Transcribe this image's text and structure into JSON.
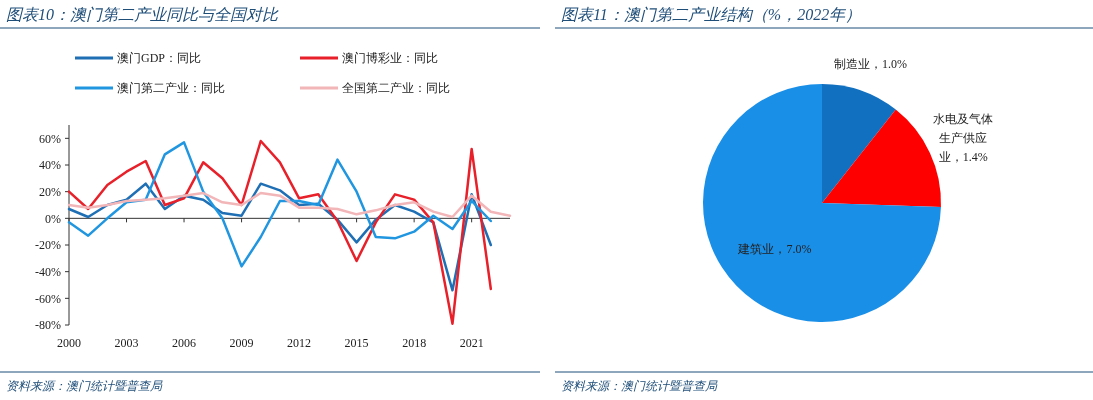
{
  "chart_data": [
    {
      "type": "line",
      "title": "图表10：澳门第二产业同比与全国对比",
      "x": [
        2000,
        2001,
        2002,
        2003,
        2004,
        2005,
        2006,
        2007,
        2008,
        2009,
        2010,
        2011,
        2012,
        2013,
        2014,
        2015,
        2016,
        2017,
        2018,
        2019,
        2020,
        2021,
        2022
      ],
      "series": [
        {
          "name": "澳门GDP：同比",
          "color": "#1f6fb5",
          "values": [
            7,
            1,
            10,
            14,
            26,
            7,
            17,
            14,
            4,
            2,
            26,
            21,
            10,
            11,
            -1,
            -18,
            -1,
            10,
            5,
            -3,
            -54,
            18,
            -20
          ]
        },
        {
          "name": "澳门博彩业：同比",
          "color": "#e8202a",
          "values": [
            20,
            7,
            25,
            35,
            43,
            10,
            15,
            42,
            30,
            10,
            58,
            42,
            15,
            18,
            -2,
            -32,
            -3,
            18,
            14,
            -3,
            -79,
            52,
            -53
          ]
        },
        {
          "name": "澳门第二产业：同比",
          "color": "#2196e0",
          "values": [
            -3,
            -13,
            0,
            12,
            14,
            48,
            57,
            20,
            0,
            -36,
            -14,
            13,
            13,
            10,
            44,
            20,
            -14,
            -15,
            -10,
            2,
            -8,
            13,
            -2
          ]
        },
        {
          "name": "全国第二产业：同比",
          "color": "#f2b5b8",
          "x": [
            2000,
            2001,
            2002,
            2003,
            2004,
            2005,
            2006,
            2007,
            2008,
            2009,
            2010,
            2011,
            2012,
            2013,
            2014,
            2015,
            2016,
            2017,
            2018,
            2019,
            2020,
            2021,
            2022,
            2023
          ],
          "values": [
            10,
            8,
            10,
            13,
            14,
            15,
            17,
            19,
            12,
            10,
            19,
            17,
            8,
            8,
            7,
            3,
            6,
            10,
            12,
            5,
            1,
            17,
            5,
            2
          ]
        }
      ],
      "xlim": [
        2000,
        2023
      ],
      "xticks": [
        2000,
        2003,
        2006,
        2009,
        2012,
        2015,
        2018,
        2021
      ],
      "ylim": [
        -80,
        70
      ],
      "yticks": [
        {
          "value": -80,
          "label": "-80%"
        },
        {
          "value": -60,
          "label": "-60%"
        },
        {
          "value": -40,
          "label": "-40%"
        },
        {
          "value": -20,
          "label": "-20%"
        },
        {
          "value": 0,
          "label": "0%"
        },
        {
          "value": 20,
          "label": "20%"
        },
        {
          "value": 40,
          "label": "40%"
        },
        {
          "value": 60,
          "label": "60%"
        }
      ],
      "legend": "top",
      "annotations": [
        "资料来源：澳门统计暨普查局"
      ]
    },
    {
      "type": "pie",
      "title": "图表11：澳门第二产业结构（%，2022年）",
      "categories": [
        "制造业",
        "水电及气体生产供应业",
        "建筑业"
      ],
      "values": [
        1.0,
        1.4,
        7.0
      ],
      "colors": [
        "#1170c0",
        "#ff0000",
        "#1a8fe8"
      ],
      "value_labels": [
        "1.0%",
        "1.4%",
        "7.0%"
      ],
      "annotations": [
        "资料来源：澳门统计暨普查局"
      ]
    }
  ]
}
